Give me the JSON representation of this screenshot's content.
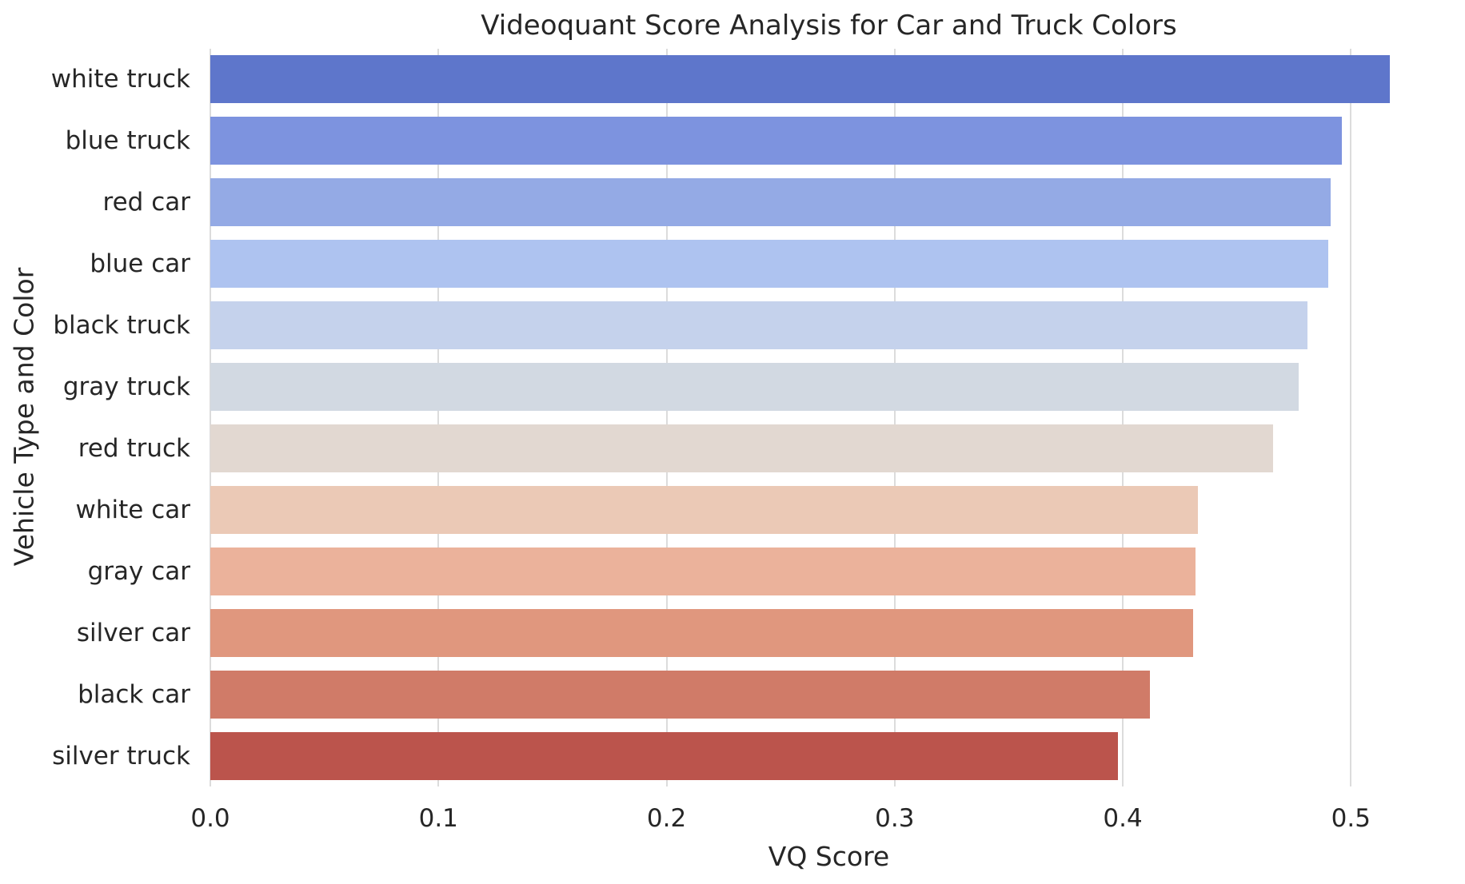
{
  "chart_data": {
    "type": "bar",
    "orientation": "horizontal",
    "title": "Videoquant Score Analysis for Car and Truck Colors",
    "xlabel": "VQ Score",
    "ylabel": "Vehicle Type and Color",
    "categories": [
      "white truck",
      "blue truck",
      "red car",
      "blue car",
      "black truck",
      "gray truck",
      "red truck",
      "white car",
      "gray car",
      "silver car",
      "black car",
      "silver truck"
    ],
    "values": [
      0.517,
      0.496,
      0.491,
      0.49,
      0.481,
      0.477,
      0.466,
      0.433,
      0.432,
      0.431,
      0.412,
      0.398
    ],
    "bar_colors": [
      "#5e76cb",
      "#7d93df",
      "#94aae5",
      "#aec3f0",
      "#c5d2ec",
      "#d2d9e2",
      "#e2d8d1",
      "#ebc9b6",
      "#ebb29b",
      "#e0977e",
      "#d07b68",
      "#bb544c"
    ],
    "palette": "coolwarm",
    "xlim": [
      0,
      0.5423
    ],
    "xticks": [
      0.0,
      0.1,
      0.2,
      0.3,
      0.4,
      0.5
    ],
    "xtick_labels": [
      "0.0",
      "0.1",
      "0.2",
      "0.3",
      "0.4",
      "0.5"
    ],
    "grid": true,
    "gridline_color": "#dcdcdc",
    "legend": "none",
    "background_color": "#ffffff",
    "text_color": "#262626"
  }
}
